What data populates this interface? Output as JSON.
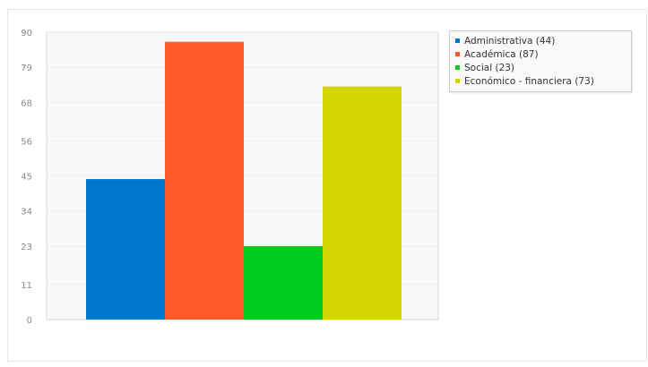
{
  "chart_data": {
    "type": "bar",
    "categories": [
      "Administrativa",
      "Académica",
      "Social",
      "Económico - financiera"
    ],
    "values": [
      44,
      87,
      23,
      73
    ],
    "colors": [
      "#0077cc",
      "#ff5a2a",
      "#00cc1e",
      "#d4d400"
    ],
    "ylim": [
      0,
      90
    ],
    "yticks": [
      "0",
      "11",
      "23",
      "34",
      "45",
      "56",
      "68",
      "79",
      "90"
    ],
    "grid": true,
    "legend_position": "top-right",
    "legend": [
      {
        "label": "Administrativa (44)",
        "color": "#0077cc"
      },
      {
        "label": "Académica (87)",
        "color": "#ff5a2a"
      },
      {
        "label": "Social (23)",
        "color": "#00cc1e"
      },
      {
        "label": "Económico - financiera (73)",
        "color": "#d4d400"
      }
    ]
  }
}
